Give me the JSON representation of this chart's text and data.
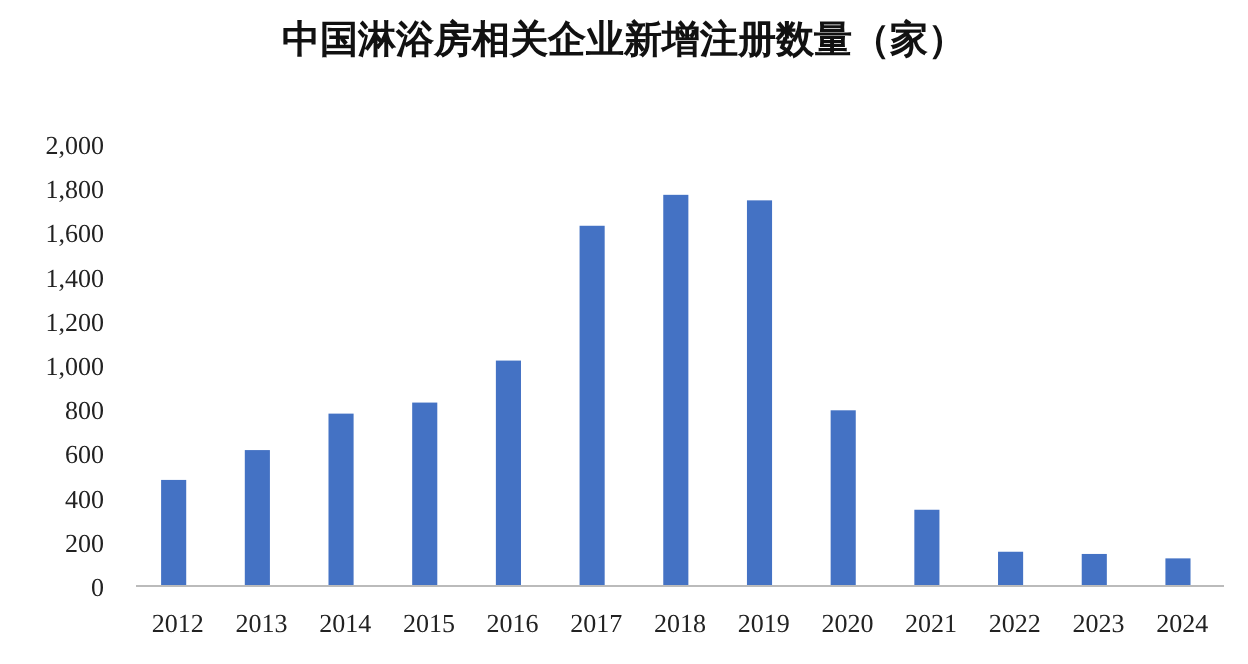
{
  "chart_data": {
    "type": "bar",
    "title": "中国淋浴房相关企业新增注册数量（家）",
    "categories": [
      "2012",
      "2013",
      "2014",
      "2015",
      "2016",
      "2017",
      "2018",
      "2019",
      "2020",
      "2021",
      "2022",
      "2023",
      "2024"
    ],
    "values": [
      480,
      615,
      780,
      830,
      1020,
      1630,
      1770,
      1745,
      795,
      345,
      155,
      145,
      125
    ],
    "color": "#4472c4",
    "ylim": [
      0,
      2000
    ],
    "yticks": [
      0,
      200,
      400,
      600,
      800,
      {
        "value": 1000,
        "label": "1,000"
      },
      {
        "value": 1200,
        "label": "1,200"
      },
      {
        "value": 1400,
        "label": "1,400"
      },
      {
        "value": 1600,
        "label": "1,600"
      },
      {
        "value": 1800,
        "label": "1,800"
      },
      {
        "value": 2000,
        "label": "2,000"
      }
    ],
    "grid": false
  }
}
